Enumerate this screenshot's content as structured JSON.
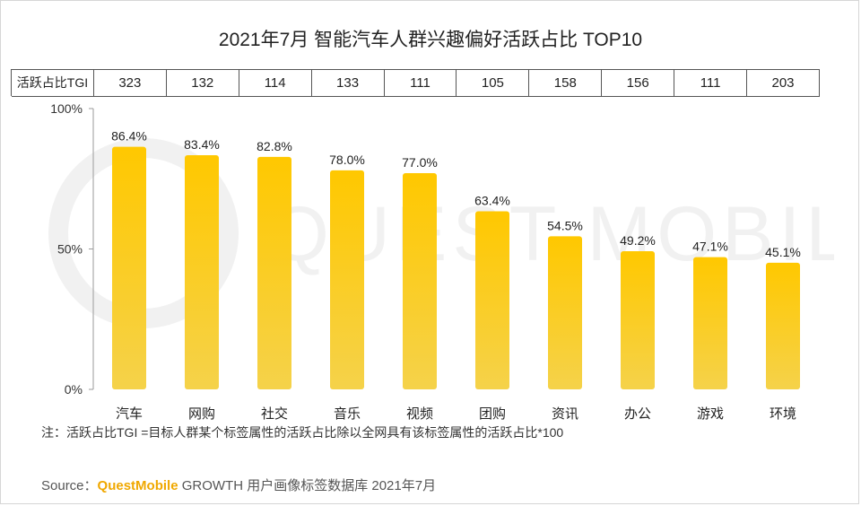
{
  "title": "2021年7月 智能汽车人群兴趣偏好活跃占比 TOP10",
  "tgi_row": {
    "label": "活跃占比TGI",
    "values": [
      "323",
      "132",
      "114",
      "133",
      "111",
      "105",
      "158",
      "156",
      "111",
      "203"
    ]
  },
  "chart_data": {
    "type": "bar",
    "categories": [
      "汽车",
      "网购",
      "社交",
      "音乐",
      "视频",
      "团购",
      "资讯",
      "办公",
      "游戏",
      "环境"
    ],
    "values": [
      86.4,
      83.4,
      82.8,
      78.0,
      77.0,
      63.4,
      54.5,
      49.2,
      47.1,
      45.1
    ],
    "value_labels": [
      "86.4%",
      "83.4%",
      "82.8%",
      "78.0%",
      "77.0%",
      "63.4%",
      "54.5%",
      "49.2%",
      "47.1%",
      "45.1%"
    ],
    "ylim": [
      0,
      100
    ],
    "yticks": [
      0,
      50,
      100
    ],
    "ytick_labels": [
      "0%",
      "50%",
      "100%"
    ],
    "grid": false,
    "bar_color_top": "#ffc800",
    "bar_color_bottom": "#f5d24a",
    "axis_color": "#9a9a9a"
  },
  "note": "注：活跃占比TGI =目标人群某个标签属性的活跃占比除以全网具有该标签属性的活跃占比*100",
  "source": {
    "prefix": "Source：",
    "brand": "QuestMobile",
    "rest": " GROWTH 用户画像标签数据库 2021年7月"
  },
  "watermark": "QUEST MOBILE"
}
